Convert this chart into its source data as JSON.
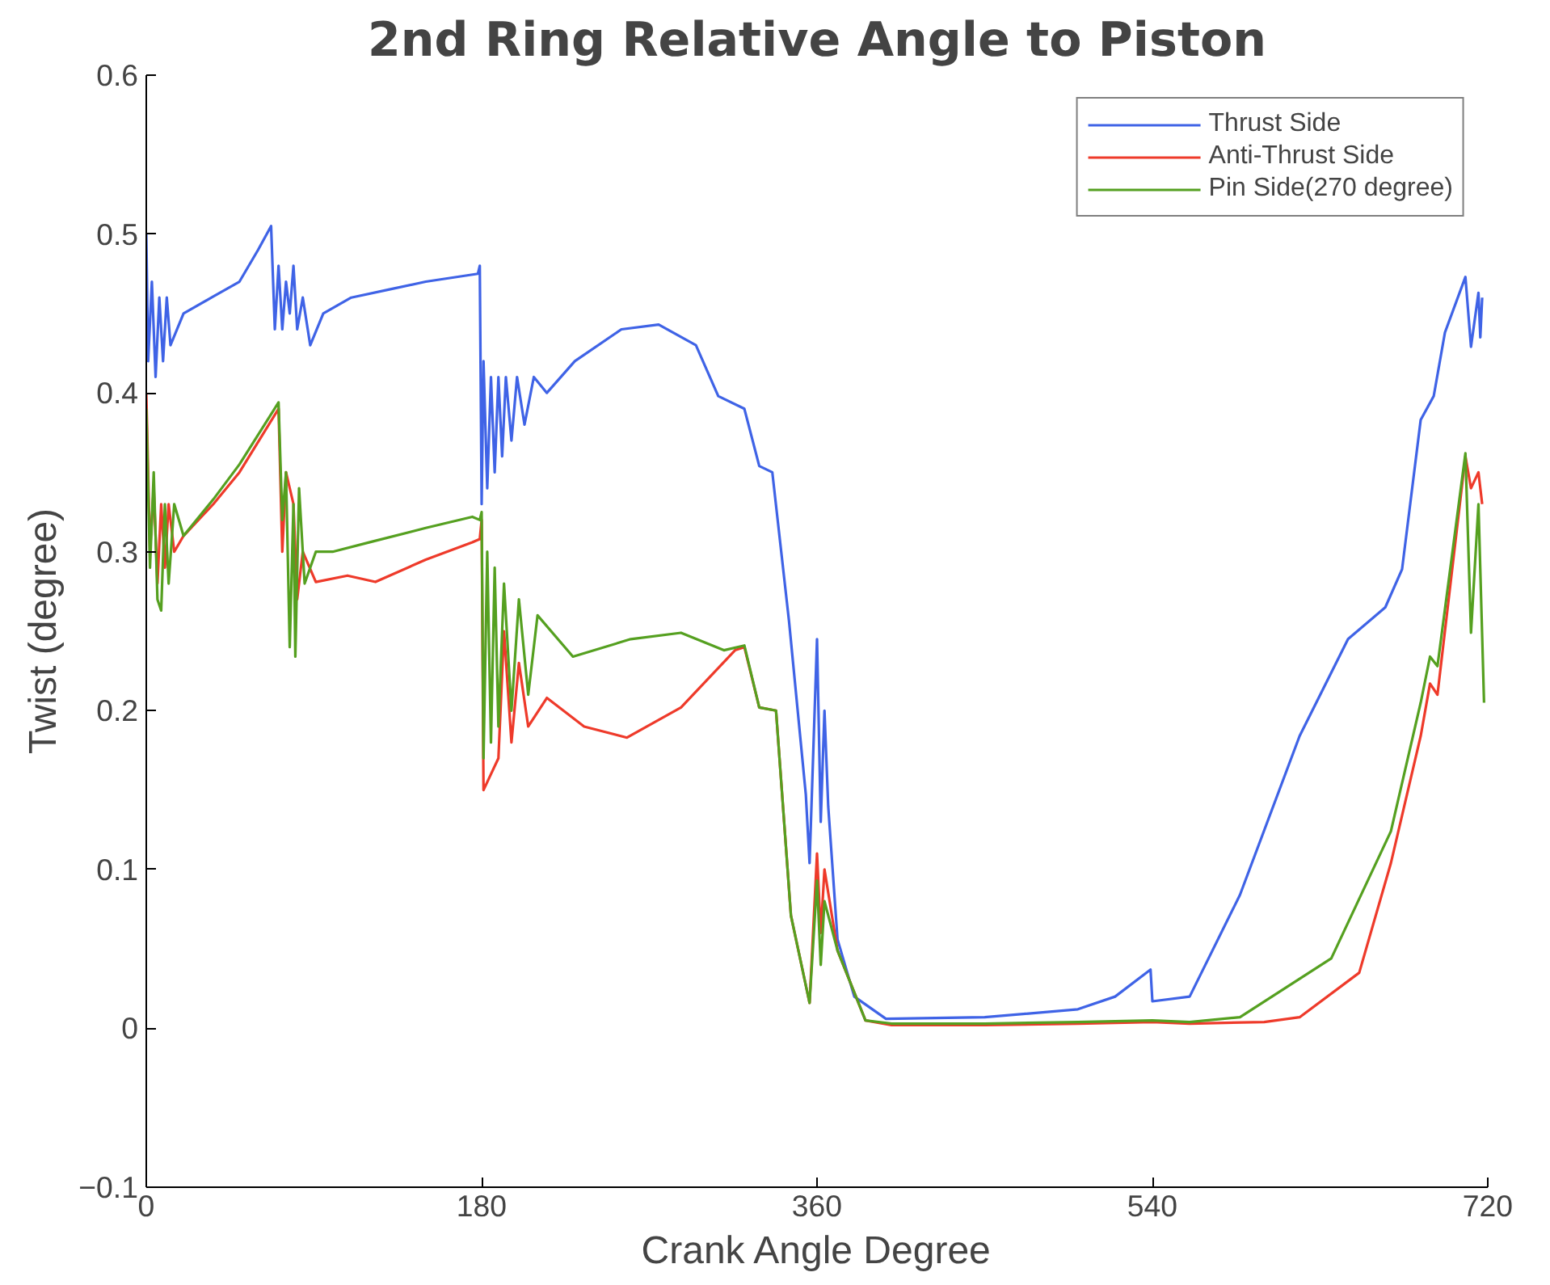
{
  "chart_data": {
    "type": "line",
    "title": "2nd Ring Relative Angle to Piston",
    "xlabel": "Crank Angle Degree",
    "ylabel": "Twist (degree)",
    "xlim": [
      0,
      720
    ],
    "ylim": [
      -0.1,
      0.6
    ],
    "xticks": [
      0,
      180,
      360,
      540,
      720
    ],
    "yticks": [
      -0.1,
      0,
      0.1,
      0.2,
      0.3,
      0.4,
      0.5,
      0.6
    ],
    "grid": false,
    "legend": "top right",
    "marker": "none",
    "line_style": "solid",
    "series": [
      {
        "name": "Thrust Side",
        "color": "#3f63e6",
        "x": [
          0,
          1,
          3,
          5,
          7,
          9,
          11,
          13,
          20,
          35,
          50,
          60,
          67,
          69,
          71,
          73,
          75,
          77,
          79,
          81,
          84,
          88,
          95,
          110,
          130,
          150,
          178,
          179,
          180,
          181,
          183,
          185,
          187,
          189,
          191,
          193,
          196,
          199,
          203,
          208,
          215,
          230,
          255,
          275,
          295,
          307,
          321,
          329,
          336,
          345,
          354,
          356,
          360,
          362,
          364,
          366,
          371,
          380,
          397,
          450,
          500,
          520,
          539,
          540,
          560,
          587,
          619,
          645,
          665,
          674,
          684,
          691,
          697,
          708,
          711,
          715,
          716,
          717
        ],
        "values": [
          0.5,
          0.42,
          0.47,
          0.41,
          0.46,
          0.42,
          0.46,
          0.43,
          0.45,
          0.46,
          0.47,
          0.49,
          0.505,
          0.44,
          0.48,
          0.44,
          0.47,
          0.45,
          0.48,
          0.44,
          0.46,
          0.43,
          0.45,
          0.46,
          0.465,
          0.47,
          0.475,
          0.48,
          0.33,
          0.42,
          0.34,
          0.41,
          0.35,
          0.41,
          0.36,
          0.41,
          0.37,
          0.41,
          0.38,
          0.41,
          0.4,
          0.42,
          0.44,
          0.443,
          0.43,
          0.398,
          0.39,
          0.354,
          0.35,
          0.256,
          0.147,
          0.104,
          0.245,
          0.13,
          0.2,
          0.14,
          0.056,
          0.02,
          0.006,
          0.007,
          0.012,
          0.02,
          0.037,
          0.017,
          0.02,
          0.084,
          0.184,
          0.245,
          0.265,
          0.289,
          0.383,
          0.398,
          0.438,
          0.473,
          0.429,
          0.463,
          0.435,
          0.46
        ]
      },
      {
        "name": "Anti-Thrust Side",
        "color": "#ee3a2a",
        "x": [
          0,
          2,
          4,
          6,
          8,
          10,
          12,
          15,
          20,
          36,
          50,
          71,
          73,
          75,
          79,
          81,
          84,
          91,
          108,
          123,
          150,
          175,
          179,
          180,
          181,
          185,
          189,
          192,
          196,
          200,
          205,
          215,
          235,
          258,
          287,
          316,
          321,
          329,
          338,
          346,
          356,
          360,
          362,
          364,
          371,
          386,
          400,
          450,
          500,
          540,
          560,
          600,
          619,
          651,
          668,
          684,
          689,
          693,
          708,
          711,
          715,
          717
        ],
        "values": [
          0.4,
          0.3,
          0.34,
          0.28,
          0.33,
          0.29,
          0.33,
          0.3,
          0.31,
          0.33,
          0.35,
          0.39,
          0.3,
          0.35,
          0.33,
          0.27,
          0.3,
          0.281,
          0.285,
          0.281,
          0.295,
          0.306,
          0.308,
          0.32,
          0.15,
          0.16,
          0.17,
          0.25,
          0.18,
          0.23,
          0.19,
          0.208,
          0.19,
          0.183,
          0.202,
          0.238,
          0.24,
          0.202,
          0.2,
          0.071,
          0.016,
          0.11,
          0.06,
          0.1,
          0.049,
          0.005,
          0.002,
          0.002,
          0.003,
          0.004,
          0.003,
          0.004,
          0.007,
          0.035,
          0.104,
          0.184,
          0.217,
          0.21,
          0.36,
          0.34,
          0.35,
          0.33
        ]
      },
      {
        "name": "Pin Side(270 degree)",
        "color": "#55a020",
        "x": [
          0,
          2,
          4,
          6,
          8,
          10,
          12,
          15,
          20,
          36,
          50,
          71,
          73,
          75,
          77,
          79,
          80,
          82,
          85,
          91,
          100,
          120,
          150,
          175,
          179,
          180,
          181,
          183,
          185,
          187,
          189,
          192,
          196,
          200,
          205,
          210,
          229,
          260,
          287,
          310,
          321,
          329,
          338,
          346,
          356,
          360,
          362,
          364,
          371,
          386,
          400,
          450,
          500,
          540,
          560,
          587,
          636,
          668,
          684,
          689,
          693,
          708,
          711,
          715,
          718
        ],
        "values": [
          0.39,
          0.29,
          0.35,
          0.27,
          0.263,
          0.33,
          0.28,
          0.33,
          0.31,
          0.333,
          0.355,
          0.394,
          0.32,
          0.35,
          0.24,
          0.33,
          0.234,
          0.34,
          0.28,
          0.3,
          0.3,
          0.306,
          0.315,
          0.322,
          0.32,
          0.325,
          0.17,
          0.3,
          0.18,
          0.29,
          0.19,
          0.28,
          0.2,
          0.27,
          0.21,
          0.26,
          0.234,
          0.245,
          0.249,
          0.238,
          0.241,
          0.202,
          0.2,
          0.071,
          0.016,
          0.093,
          0.04,
          0.08,
          0.049,
          0.005,
          0.003,
          0.003,
          0.004,
          0.005,
          0.004,
          0.007,
          0.044,
          0.124,
          0.205,
          0.234,
          0.228,
          0.362,
          0.249,
          0.33,
          0.205
        ]
      }
    ]
  }
}
